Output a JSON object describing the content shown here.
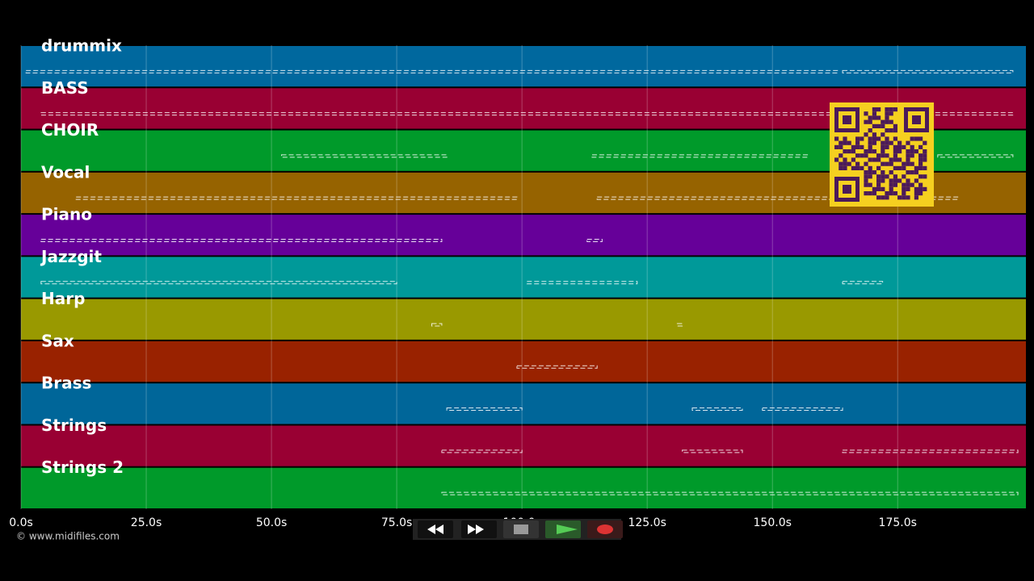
{
  "chart_data": {
    "type": "piano-roll",
    "xlim": [
      0,
      200.6
    ],
    "xticks": [
      {
        "value": 0,
        "label": "0.0s"
      },
      {
        "value": 25,
        "label": "25.0s"
      },
      {
        "value": 50,
        "label": "50.0s"
      },
      {
        "value": 75,
        "label": "75.0s"
      },
      {
        "value": 100,
        "label": "100.0s"
      },
      {
        "value": 125,
        "label": "125.0s"
      },
      {
        "value": 150,
        "label": "150.0s"
      },
      {
        "value": 175,
        "label": "175.0s"
      }
    ],
    "grid": true,
    "tracks": [
      {
        "name": "drummix",
        "color": "#00689e",
        "notes": [
          [
            1,
            163
          ],
          [
            164,
            198
          ]
        ]
      },
      {
        "name": "BASS",
        "color": "#990033",
        "notes": [
          [
            4,
            198
          ]
        ]
      },
      {
        "name": "CHOIR",
        "color": "#009a2a",
        "notes": [
          [
            52,
            85
          ],
          [
            114,
            157
          ],
          [
            183,
            198
          ]
        ]
      },
      {
        "name": "Vocal",
        "color": "#966300",
        "notes": [
          [
            11,
            99
          ],
          [
            115,
            187
          ]
        ]
      },
      {
        "name": "Piano",
        "color": "#660099",
        "notes": [
          [
            4,
            84
          ],
          [
            113,
            116
          ]
        ]
      },
      {
        "name": "Jazzgit",
        "color": "#009999",
        "notes": [
          [
            4,
            75
          ],
          [
            101,
            123
          ],
          [
            164,
            172
          ]
        ]
      },
      {
        "name": "Harp",
        "color": "#999900",
        "notes": [
          [
            82,
            84
          ],
          [
            131,
            132
          ]
        ]
      },
      {
        "name": "Sax",
        "color": "#992200",
        "notes": [
          [
            99,
            115
          ]
        ]
      },
      {
        "name": "Brass",
        "color": "#006699",
        "notes": [
          [
            85,
            100
          ],
          [
            134,
            144
          ],
          [
            148,
            164
          ]
        ]
      },
      {
        "name": "Strings",
        "color": "#990033",
        "notes": [
          [
            84,
            100
          ],
          [
            132,
            144
          ],
          [
            164,
            199
          ]
        ]
      },
      {
        "name": "Strings 2",
        "color": "#009a2a",
        "notes": [
          [
            84,
            199
          ]
        ]
      }
    ]
  },
  "footer": {
    "credit": "© www.midifiles.com"
  }
}
